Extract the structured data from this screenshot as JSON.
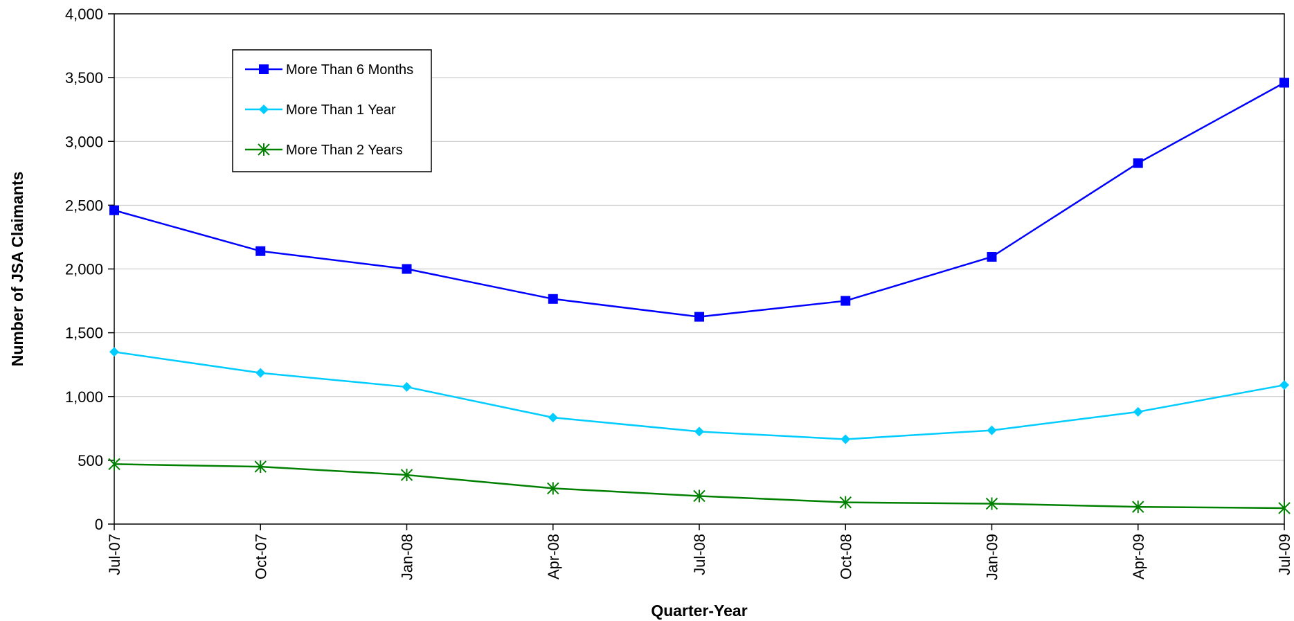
{
  "chart_data": {
    "type": "line",
    "title": "",
    "xlabel": "Quarter-Year",
    "ylabel": "Number of JSA Claimants",
    "categories": [
      "Jul-07",
      "Oct-07",
      "Jan-08",
      "Apr-08",
      "Jul-08",
      "Oct-08",
      "Jan-09",
      "Apr-09",
      "Jul-09"
    ],
    "ylim": [
      0,
      4000
    ],
    "yticks": [
      0,
      500,
      1000,
      1500,
      2000,
      2500,
      3000,
      3500,
      4000
    ],
    "ytick_labels": [
      "0",
      "500",
      "1,000",
      "1,500",
      "2,000",
      "2,500",
      "3,000",
      "3,500",
      "4,000"
    ],
    "grid": "horizontal",
    "legend_position": "top-left",
    "series": [
      {
        "name": "More Than 6 Months",
        "color": "#0000ff",
        "marker": "square",
        "values": [
          2460,
          2140,
          2000,
          1765,
          1625,
          1750,
          2095,
          2830,
          3460
        ]
      },
      {
        "name": "More Than 1 Year",
        "color": "#00ccff",
        "marker": "diamond",
        "values": [
          1350,
          1185,
          1075,
          835,
          725,
          665,
          735,
          880,
          1090
        ]
      },
      {
        "name": "More Than 2 Years",
        "color": "#008000",
        "marker": "asterisk",
        "values": [
          470,
          450,
          385,
          280,
          220,
          170,
          160,
          135,
          125
        ]
      }
    ]
  }
}
